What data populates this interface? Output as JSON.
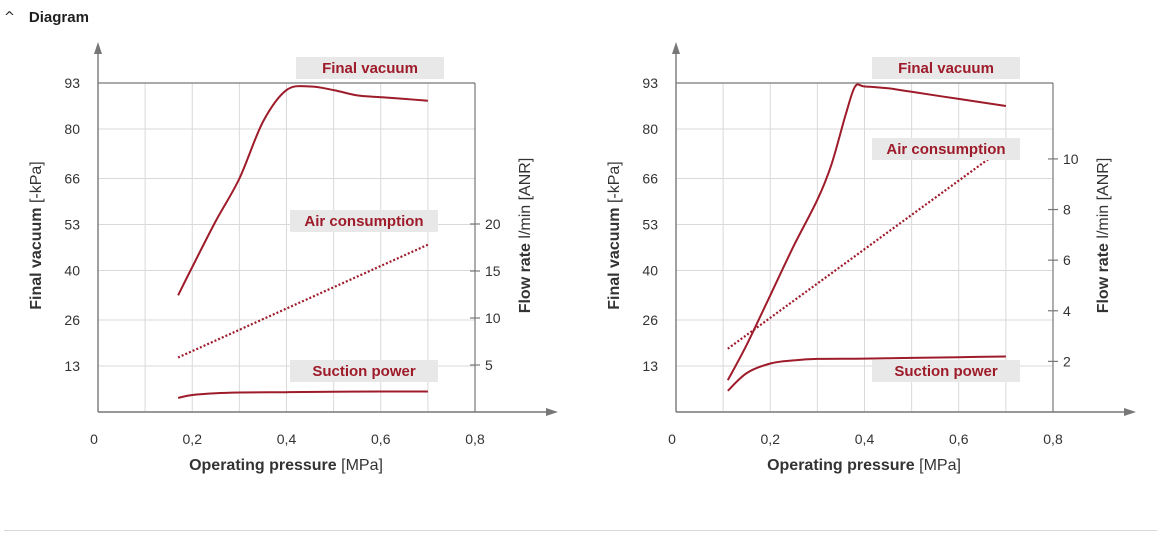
{
  "section": {
    "title": "Diagram",
    "chevron_icon": "chevron-up-icon"
  },
  "colors": {
    "curve": "#9e1b2a",
    "label_text": "#9e1b2a",
    "label_bg": "#e8e8e8",
    "grid": "#d9d9d9",
    "axis": "#777777",
    "text": "#333333"
  },
  "chart_data": [
    {
      "type": "line",
      "xlabel": "Operating pressure",
      "xlabel_unit": "[MPa]",
      "ylabel_left": "Final vacuum",
      "ylabel_left_unit": "[-kPa]",
      "ylabel_right": "Flow rate",
      "ylabel_right_unit": "l/min [ANR]",
      "x_ticks": [
        "0",
        "0,2",
        "0,4",
        "0,6",
        "0,8"
      ],
      "xlim": [
        0,
        0.8
      ],
      "y_left_ticks": [
        13,
        26,
        40,
        53,
        66,
        80,
        93
      ],
      "ylim_left": [
        0,
        93
      ],
      "y_right_ticks": [
        5,
        10,
        15,
        20
      ],
      "ylim_right": [
        0,
        35
      ],
      "grid": true,
      "series": [
        {
          "name": "Final vacuum",
          "axis": "left",
          "style": "solid",
          "x": [
            0.17,
            0.2,
            0.25,
            0.3,
            0.35,
            0.4,
            0.45,
            0.5,
            0.55,
            0.6,
            0.65,
            0.7
          ],
          "y": [
            33,
            41,
            54,
            66,
            82,
            91,
            92,
            91,
            89.5,
            89,
            88.5,
            88
          ]
        },
        {
          "name": "Air consumption",
          "axis": "right",
          "style": "dotted",
          "x": [
            0.17,
            0.7
          ],
          "y": [
            5.8,
            17.8
          ]
        },
        {
          "name": "Suction power",
          "axis": "left",
          "style": "solid",
          "x": [
            0.17,
            0.2,
            0.25,
            0.3,
            0.4,
            0.5,
            0.6,
            0.7
          ],
          "y": [
            4,
            4.8,
            5.3,
            5.5,
            5.6,
            5.7,
            5.8,
            5.8
          ]
        }
      ]
    },
    {
      "type": "line",
      "xlabel": "Operating pressure",
      "xlabel_unit": "[MPa]",
      "ylabel_left": "Final vacuum",
      "ylabel_left_unit": "[-kPa]",
      "ylabel_right": "Flow rate",
      "ylabel_right_unit": "l/min [ANR]",
      "x_ticks": [
        "0",
        "0,2",
        "0,4",
        "0,6",
        "0,8"
      ],
      "xlim": [
        0,
        0.8
      ],
      "y_left_ticks": [
        13,
        26,
        40,
        53,
        66,
        80,
        93
      ],
      "ylim_left": [
        0,
        93
      ],
      "y_right_ticks": [
        2,
        4,
        6,
        8,
        10
      ],
      "ylim_right": [
        0,
        13
      ],
      "grid": true,
      "series": [
        {
          "name": "Final vacuum",
          "axis": "left",
          "style": "solid",
          "x": [
            0.11,
            0.15,
            0.2,
            0.25,
            0.3,
            0.33,
            0.36,
            0.38,
            0.4,
            0.45,
            0.5,
            0.6,
            0.7
          ],
          "y": [
            9,
            19,
            33,
            47,
            60,
            70,
            84,
            92,
            92,
            91.5,
            90.5,
            88.5,
            86.5
          ]
        },
        {
          "name": "Air consumption",
          "axis": "right",
          "style": "dotted",
          "x": [
            0.11,
            0.7
          ],
          "y": [
            2.5,
            10.5
          ]
        },
        {
          "name": "Suction power",
          "axis": "left",
          "style": "solid",
          "x": [
            0.11,
            0.15,
            0.2,
            0.25,
            0.3,
            0.4,
            0.5,
            0.6,
            0.7
          ],
          "y": [
            6,
            11,
            13.7,
            14.6,
            15,
            15.1,
            15.3,
            15.5,
            15.7
          ]
        }
      ]
    }
  ]
}
